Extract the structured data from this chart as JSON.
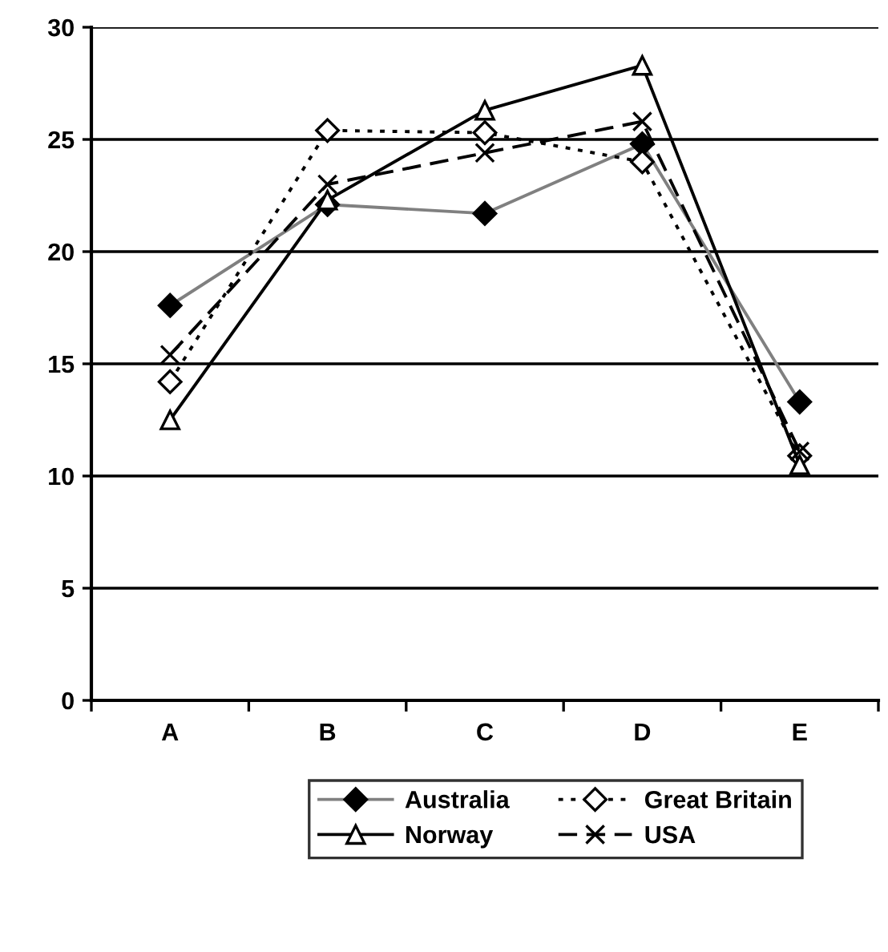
{
  "chart_data": {
    "type": "line",
    "categories": [
      "A",
      "B",
      "C",
      "D",
      "E"
    ],
    "series": [
      {
        "name": "Australia",
        "color": "#808080",
        "marker": "diamond",
        "line_style": "solid",
        "values": [
          17.6,
          22.1,
          21.7,
          24.8,
          13.3
        ]
      },
      {
        "name": "Great Britain",
        "color": "#000000",
        "marker": "diamond",
        "line_style": "dotted",
        "values": [
          14.2,
          25.4,
          25.3,
          24.0,
          10.9
        ]
      },
      {
        "name": "Norway",
        "color": "#000000",
        "marker": "triangle",
        "line_style": "solid",
        "values": [
          12.5,
          22.3,
          26.3,
          28.3,
          10.5
        ]
      },
      {
        "name": "USA",
        "color": "#000000",
        "marker": "cross",
        "line_style": "dashed",
        "values": [
          15.4,
          23.0,
          24.4,
          25.8,
          11.1
        ]
      }
    ],
    "ylim": [
      0,
      30
    ],
    "yticks": [
      0,
      5,
      10,
      15,
      20,
      25,
      30
    ],
    "grid": "y",
    "legend": "bottom"
  }
}
